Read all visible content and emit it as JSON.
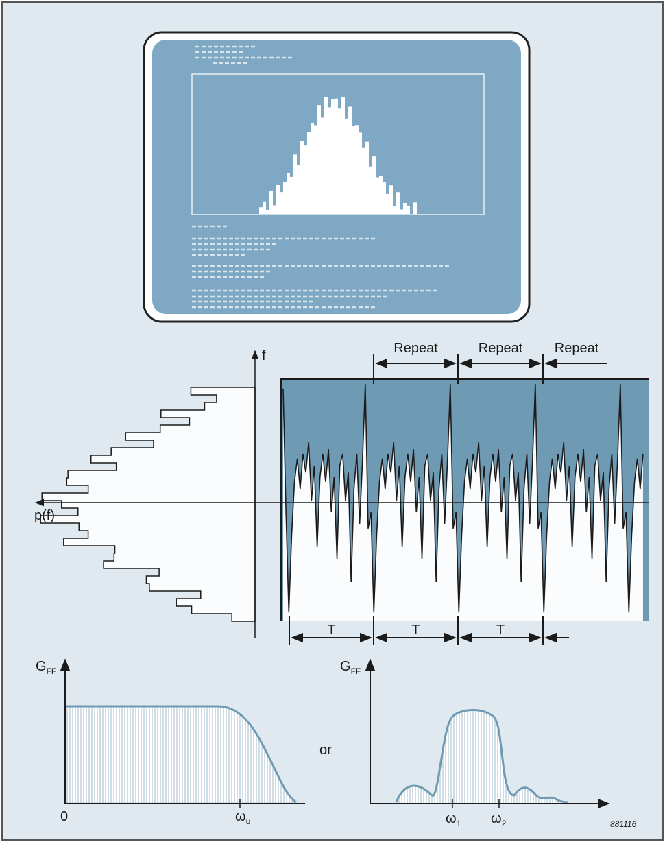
{
  "repeat_labels": [
    "Repeat",
    "Repeat",
    "Repeat"
  ],
  "axis_f": "f",
  "axis_pf": "p(f)",
  "period_labels": [
    "T",
    "T",
    "T"
  ],
  "left_plot": {
    "y_label": {
      "main": "G",
      "sub": "FF"
    },
    "origin": "0",
    "x_mark": {
      "main": "ω",
      "sub": "u"
    }
  },
  "connector": "or",
  "right_plot": {
    "y_label": {
      "main": "G",
      "sub": "FF"
    },
    "x_marks": [
      {
        "main": "ω",
        "sub": "1"
      },
      {
        "main": "ω",
        "sub": "2"
      }
    ]
  },
  "figure_id": "881116"
}
